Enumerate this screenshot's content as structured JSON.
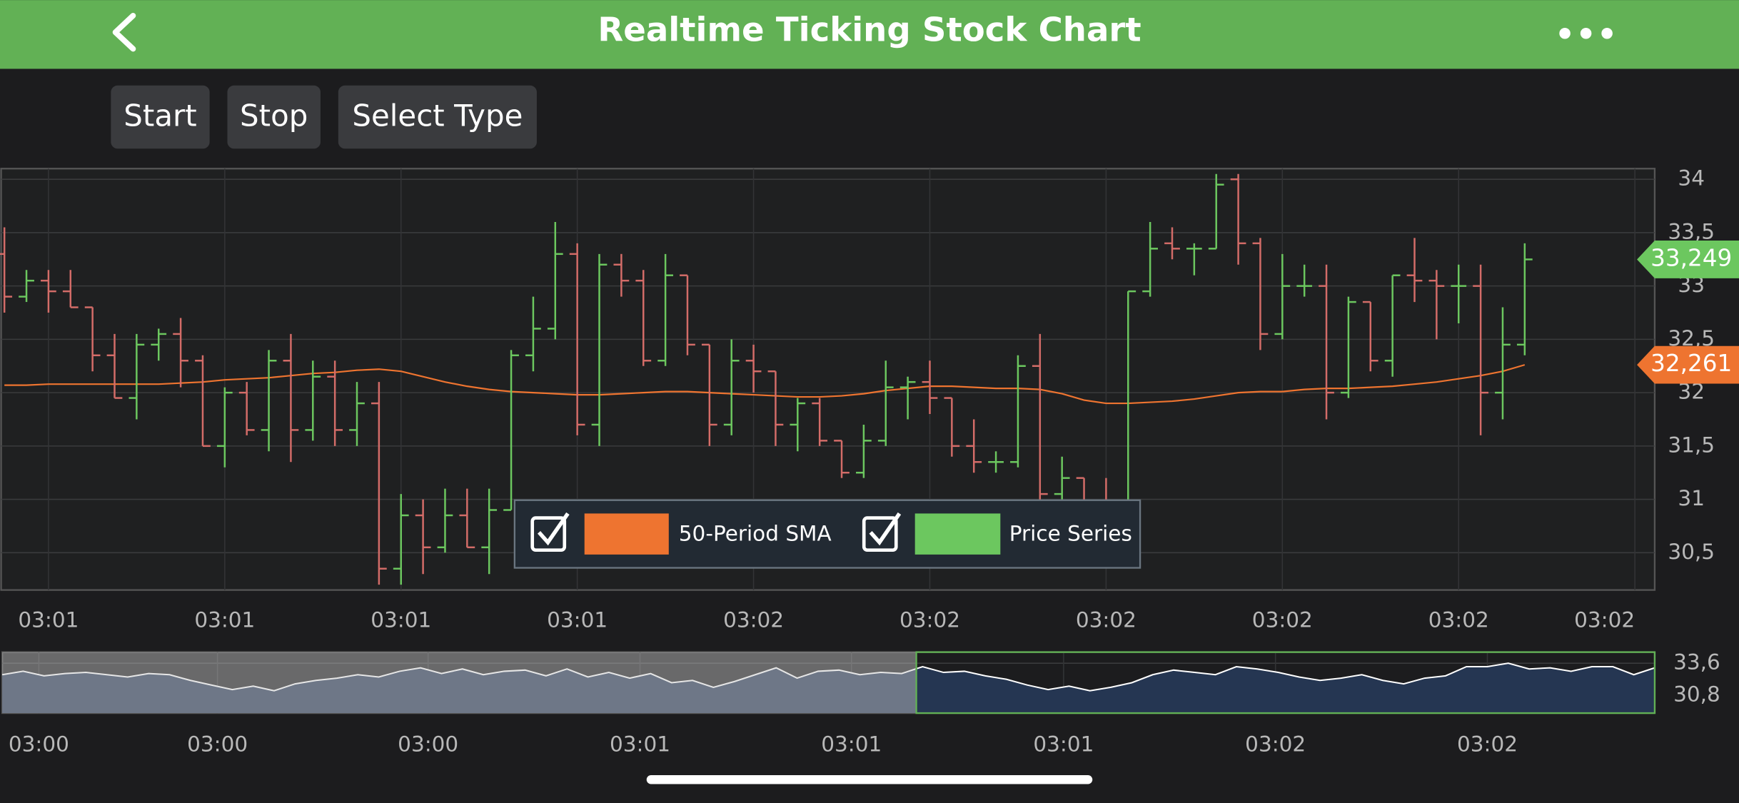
{
  "header": {
    "title": "Realtime Ticking Stock Chart"
  },
  "buttons": [
    "Start",
    "Stop",
    "Select Type"
  ],
  "chart_data": [
    {
      "type": "ohlc",
      "x": [
        0,
        1,
        2,
        3,
        4,
        5,
        6,
        7,
        8,
        9,
        10,
        11,
        12,
        13,
        14,
        15,
        16,
        17,
        18,
        19,
        20,
        21,
        22,
        23,
        24,
        25,
        26,
        27,
        28,
        29,
        30,
        31,
        32,
        33,
        34,
        35,
        36,
        37,
        38,
        39,
        40,
        41,
        42,
        43,
        44,
        45,
        46,
        47,
        48,
        49,
        50,
        51,
        52,
        53,
        54,
        55,
        56,
        57,
        58,
        59,
        60,
        61,
        62,
        63,
        64,
        65,
        66,
        67,
        68,
        69
      ],
      "xlim": [
        -0.15,
        74.9
      ],
      "xticks": [
        {
          "value": 2,
          "label": "03:01"
        },
        {
          "value": 10,
          "label": "03:01"
        },
        {
          "value": 18,
          "label": "03:01"
        },
        {
          "value": 26,
          "label": "03:01"
        },
        {
          "value": 34,
          "label": "03:02"
        },
        {
          "value": 42,
          "label": "03:02"
        },
        {
          "value": 50,
          "label": "03:02"
        },
        {
          "value": 58,
          "label": "03:02"
        },
        {
          "value": 66,
          "label": "03:02"
        },
        {
          "value": 74,
          "label": "03:02"
        }
      ],
      "ylim": [
        30.15,
        34.1
      ],
      "yticks": [
        {
          "value": 30.5,
          "label": "30,5"
        },
        31,
        {
          "value": 31.5,
          "label": "31,5"
        },
        32,
        {
          "value": 32.5,
          "label": "32,5"
        },
        33,
        {
          "value": 33.5,
          "label": "33,5"
        },
        34
      ],
      "grid": true,
      "series": [
        {
          "name": "50-Period SMA",
          "type": "line",
          "color": "#ee7430",
          "last_label": "32,261",
          "values": [
            32.07,
            32.07,
            32.08,
            32.08,
            32.08,
            32.08,
            32.08,
            32.08,
            32.09,
            32.1,
            32.12,
            32.13,
            32.14,
            32.16,
            32.18,
            32.19,
            32.21,
            32.22,
            32.2,
            32.15,
            32.1,
            32.06,
            32.03,
            32.01,
            32.0,
            31.99,
            31.98,
            31.98,
            31.99,
            32.0,
            32.01,
            32.01,
            32.0,
            31.99,
            31.98,
            31.97,
            31.96,
            31.96,
            31.97,
            31.99,
            32.02,
            32.04,
            32.06,
            32.06,
            32.05,
            32.04,
            32.04,
            32.03,
            31.99,
            31.93,
            31.9,
            31.9,
            31.91,
            31.92,
            31.94,
            31.97,
            32.0,
            32.01,
            32.01,
            32.03,
            32.04,
            32.04,
            32.05,
            32.06,
            32.08,
            32.1,
            32.13,
            32.16,
            32.2,
            32.261
          ]
        },
        {
          "name": "Price Series",
          "type": "ohlc",
          "color": "#6cc75f",
          "down_color": "#d36c68",
          "last_label": "33,249",
          "open": [
            33.3,
            32.9,
            33.05,
            32.95,
            32.8,
            32.35,
            31.95,
            32.45,
            32.55,
            32.3,
            31.5,
            32.0,
            31.65,
            32.3,
            31.65,
            32.15,
            31.65,
            31.9,
            30.35,
            30.85,
            30.55,
            30.85,
            30.55,
            30.9,
            32.35,
            32.6,
            33.3,
            31.7,
            33.2,
            33.05,
            32.3,
            33.1,
            32.45,
            31.7,
            32.3,
            32.2,
            31.7,
            31.9,
            31.55,
            31.25,
            31.55,
            32.05,
            32.1,
            31.95,
            31.5,
            31.35,
            31.35,
            32.25,
            31.05,
            31.2,
            30.95,
            30.85,
            32.95,
            33.4,
            33.35,
            33.35,
            34.0,
            33.4,
            32.55,
            33.0,
            33.0,
            32.0,
            32.85,
            32.3,
            33.1,
            33.05,
            33.0,
            33.0,
            32.0,
            32.45
          ],
          "high": [
            33.55,
            33.15,
            33.15,
            33.15,
            32.8,
            32.55,
            32.55,
            32.6,
            32.7,
            32.35,
            32.05,
            32.1,
            32.4,
            32.55,
            32.3,
            32.3,
            32.1,
            32.1,
            31.05,
            31.0,
            31.1,
            31.1,
            31.1,
            32.4,
            32.9,
            33.6,
            33.4,
            33.3,
            33.3,
            33.15,
            33.3,
            33.1,
            32.45,
            32.5,
            32.45,
            32.2,
            31.95,
            31.95,
            31.55,
            31.7,
            32.3,
            32.15,
            32.3,
            31.95,
            31.75,
            31.45,
            32.35,
            32.55,
            31.4,
            31.2,
            31.2,
            32.95,
            33.6,
            33.55,
            33.4,
            34.05,
            34.05,
            33.45,
            33.3,
            33.2,
            33.2,
            32.9,
            32.85,
            33.1,
            33.45,
            33.15,
            33.2,
            33.2,
            32.8,
            33.4
          ],
          "low": [
            32.75,
            32.85,
            32.75,
            32.8,
            32.2,
            31.95,
            31.75,
            32.3,
            32.05,
            31.5,
            31.3,
            31.6,
            31.45,
            31.35,
            31.55,
            31.5,
            31.5,
            30.2,
            30.2,
            30.3,
            30.5,
            30.55,
            30.3,
            30.9,
            32.2,
            32.5,
            31.6,
            31.5,
            32.9,
            32.25,
            32.25,
            32.35,
            31.5,
            31.6,
            32.0,
            31.5,
            31.45,
            31.5,
            31.2,
            31.2,
            31.5,
            31.75,
            31.8,
            31.4,
            31.25,
            31.25,
            31.3,
            30.9,
            31.0,
            30.9,
            30.8,
            30.8,
            32.9,
            33.25,
            33.1,
            33.35,
            33.2,
            32.4,
            32.5,
            32.9,
            31.75,
            31.95,
            32.2,
            32.15,
            32.85,
            32.5,
            32.65,
            31.6,
            31.75,
            32.35
          ],
          "close": [
            32.9,
            33.05,
            32.95,
            32.8,
            32.35,
            31.95,
            32.45,
            32.55,
            32.3,
            31.5,
            32.0,
            31.65,
            32.3,
            31.65,
            32.15,
            31.65,
            31.9,
            30.35,
            30.85,
            30.55,
            30.85,
            30.55,
            30.9,
            32.35,
            32.6,
            33.3,
            31.7,
            33.2,
            33.05,
            32.3,
            33.1,
            32.45,
            31.7,
            32.3,
            32.2,
            31.7,
            31.9,
            31.55,
            31.25,
            31.55,
            32.05,
            32.1,
            31.95,
            31.5,
            31.35,
            31.35,
            32.25,
            31.05,
            31.2,
            30.95,
            30.85,
            32.95,
            33.35,
            33.35,
            33.35,
            33.95,
            33.4,
            32.55,
            33.0,
            33.0,
            32.0,
            32.85,
            32.3,
            33.1,
            33.05,
            33.0,
            33.0,
            32.0,
            32.45,
            33.249
          ]
        }
      ]
    },
    {
      "type": "mountain",
      "x": [
        0,
        1,
        2,
        3,
        4,
        5,
        6,
        7,
        8,
        9,
        10,
        11,
        12,
        13,
        14,
        15,
        16,
        17,
        18,
        19,
        20,
        21,
        22,
        23,
        24,
        25,
        26,
        27,
        28,
        29,
        30,
        31,
        32,
        33,
        34,
        35,
        36,
        37,
        38,
        39,
        40,
        41,
        42,
        43,
        44,
        45,
        46,
        47,
        48,
        49,
        50,
        51,
        52,
        53,
        54,
        55,
        56,
        57,
        58,
        59,
        60,
        61,
        62,
        63,
        64,
        65,
        66,
        67,
        68,
        69,
        70,
        71,
        72,
        73,
        74,
        75,
        76,
        77,
        78,
        79
      ],
      "xlim": [
        0,
        79
      ],
      "xticks": [
        {
          "value": 1.75,
          "label": "03:00"
        },
        {
          "value": 10.29,
          "label": "03:00"
        },
        {
          "value": 20.36,
          "label": "03:00"
        },
        {
          "value": 30.49,
          "label": "03:01"
        },
        {
          "value": 40.6,
          "label": "03:01"
        },
        {
          "value": 50.74,
          "label": "03:01"
        },
        {
          "value": 60.87,
          "label": "03:02"
        },
        {
          "value": 71.0,
          "label": "03:02"
        }
      ],
      "ylim": [
        29.25,
        34.57
      ],
      "yticks": [
        {
          "value": 30.8,
          "label": "30,8"
        },
        {
          "value": 33.6,
          "label": "33,6"
        }
      ],
      "grid": true,
      "selected_range": [
        43.7,
        79
      ],
      "series": [
        {
          "type": "mountain",
          "color": "#ffffff",
          "fill": "#253652",
          "values": [
            32.6,
            32.9,
            32.5,
            32.7,
            32.8,
            32.6,
            32.4,
            32.7,
            32.6,
            32.1,
            31.7,
            31.3,
            31.6,
            31.2,
            31.8,
            32.1,
            32.3,
            32.6,
            32.4,
            32.9,
            33.2,
            32.7,
            33.1,
            32.6,
            32.9,
            33.0,
            32.5,
            33.1,
            32.4,
            32.8,
            32.3,
            32.7,
            31.9,
            32.1,
            31.5,
            32.0,
            32.6,
            33.2,
            32.3,
            32.9,
            33.0,
            32.6,
            32.8,
            32.7,
            33.3,
            32.8,
            32.9,
            32.5,
            32.2,
            31.7,
            31.3,
            31.6,
            31.2,
            31.5,
            31.9,
            32.6,
            33.0,
            32.8,
            32.6,
            33.3,
            33.1,
            32.8,
            32.4,
            32.1,
            32.3,
            32.6,
            32.1,
            31.8,
            32.3,
            32.5,
            33.3,
            33.3,
            33.6,
            33.1,
            33.2,
            32.9,
            33.3,
            33.3,
            32.6,
            33.2
          ]
        }
      ]
    }
  ]
}
